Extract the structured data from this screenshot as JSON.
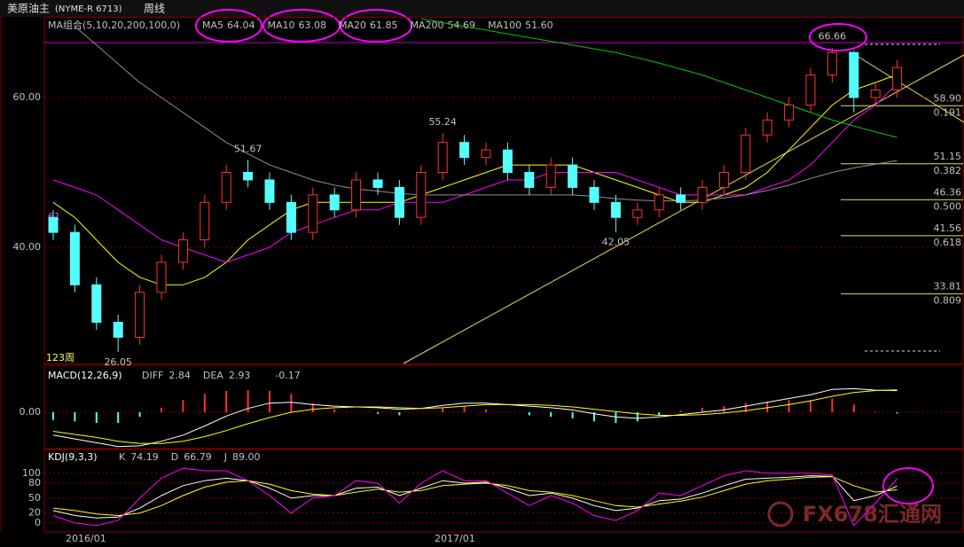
{
  "chart_data": {
    "type": "candlestick",
    "title": "美原油主",
    "symbol": "(NYME-R 6713)",
    "period": "周线",
    "ma_group": "MA组合(5,10,20,200,100,0)",
    "ma_legend": [
      {
        "name": "MA5",
        "value": 64.04,
        "color": "#ffffff"
      },
      {
        "name": "MA10",
        "value": 63.08,
        "color": "#ffff00"
      },
      {
        "name": "MA20",
        "value": 61.85,
        "color": "#ff00ff"
      },
      {
        "name": "MA200",
        "value": 54.69,
        "color": "#00ff00"
      },
      {
        "name": "MA100",
        "value": 51.6,
        "label": "51.60",
        "color": "#909090"
      }
    ],
    "open": [
      44,
      42,
      35,
      30,
      28,
      34,
      38,
      41,
      46,
      50,
      49,
      46,
      42,
      47,
      45,
      49,
      48,
      44,
      50,
      54,
      52,
      53,
      50,
      48,
      51,
      48,
      46,
      44,
      45,
      47,
      46,
      48,
      50,
      55,
      57,
      59,
      63,
      66,
      60,
      61
    ],
    "high": [
      45,
      43,
      36,
      31,
      35,
      39,
      42,
      47,
      51,
      51.67,
      50,
      47,
      48,
      48,
      50,
      50,
      49,
      51,
      55.24,
      55,
      54,
      54,
      51,
      52,
      52,
      49,
      47,
      46,
      48,
      48,
      49,
      51,
      56,
      58,
      60,
      64,
      66.66,
      66.3,
      62,
      65
    ],
    "low": [
      41,
      34,
      29,
      26.05,
      27,
      33,
      37,
      40,
      45,
      48,
      45,
      41,
      41,
      44,
      44,
      47,
      43,
      43,
      49,
      51,
      51,
      49,
      47,
      47,
      47,
      45,
      42.05,
      43,
      44,
      45,
      45,
      47,
      49,
      54,
      56,
      58,
      62,
      58,
      59,
      60
    ],
    "close": [
      42,
      35,
      30,
      28,
      34,
      38,
      41,
      46,
      50,
      49,
      46,
      42,
      47,
      45,
      49,
      48,
      44,
      50,
      54,
      52,
      53,
      50,
      48,
      51,
      48,
      46,
      44,
      45,
      47,
      46,
      48,
      50,
      55,
      57,
      59,
      63,
      66,
      60,
      61,
      64
    ],
    "up_color": "#ff3232",
    "down_color": "#54ffff",
    "ma_lines": [
      {
        "name": "MA10",
        "color": "#ffff00",
        "values": [
          46,
          44,
          41,
          38,
          36,
          35,
          35,
          36,
          38,
          41,
          43,
          45,
          46,
          46,
          46,
          46,
          46,
          47,
          48,
          49,
          50,
          51,
          51,
          51,
          51,
          50,
          49,
          48,
          47,
          46,
          46,
          47,
          48,
          50,
          53,
          56,
          59,
          61,
          62,
          63.08
        ]
      },
      {
        "name": "MA20",
        "color": "#ff00ff",
        "values": [
          49,
          48,
          47,
          45,
          43,
          41,
          40,
          39,
          38,
          39,
          40,
          42,
          43,
          44,
          45,
          45,
          46,
          46,
          46,
          47,
          48,
          49,
          49,
          50,
          50,
          50,
          50,
          49,
          48,
          47,
          47,
          47,
          47,
          48,
          49,
          51,
          54,
          57,
          59,
          61.85
        ]
      },
      {
        "name": "MA100",
        "color": "#909090",
        "values": [
          null,
          69.5,
          67,
          64.5,
          62,
          60,
          58,
          56,
          54,
          52.5,
          51,
          50,
          49,
          48.3,
          47.8,
          47.5,
          47.2,
          47,
          47,
          47,
          47,
          47,
          47,
          47,
          47,
          46.8,
          46.5,
          46.3,
          46.2,
          46.2,
          46.3,
          46.6,
          47,
          47.6,
          48.3,
          49.2,
          50,
          50.6,
          51.1,
          51.6
        ]
      },
      {
        "name": "MA200",
        "color": "#00c800",
        "values": [
          null,
          null,
          null,
          null,
          null,
          null,
          null,
          null,
          null,
          null,
          null,
          null,
          null,
          null,
          null,
          null,
          null,
          70.5,
          70,
          69.5,
          69,
          68.5,
          68,
          67.5,
          67,
          66.5,
          66,
          65.3,
          64.6,
          63.8,
          63,
          62,
          61,
          60,
          59,
          58,
          57,
          56.2,
          55.4,
          54.69
        ]
      }
    ],
    "ylim": [
      24.5,
      70.65
    ],
    "yticks": [
      {
        "value": 60,
        "label": "60.00"
      },
      {
        "value": 40,
        "label": "40.00"
      }
    ],
    "fibonacci": [
      {
        "price": {
          "value": 58.9,
          "label": "58.90"
        },
        "ratio": 0.191
      },
      {
        "price": 51.15,
        "ratio": 0.382
      },
      {
        "price": 46.36,
        "ratio": {
          "value": 0.5,
          "label": "0.500"
        }
      },
      {
        "price": 41.56,
        "ratio": 0.618
      },
      {
        "price": 33.81,
        "ratio": 0.809
      }
    ],
    "annotations": [
      "61",
      "123周"
    ],
    "x_labels": [
      "2016/01",
      "2017/01"
    ],
    "macd": {
      "title": "MACD(12,26,9)",
      "legend": [
        {
          "name": "DIFF",
          "value": 2.84,
          "color": "#ffffff"
        },
        {
          "name": "DEA",
          "value": 2.93,
          "color": "#ffff00"
        }
      ],
      "diff": [
        -3,
        -3.5,
        -4,
        -4.5,
        -4.4,
        -3.8,
        -3,
        -1.8,
        -0.5,
        0.5,
        1.2,
        1.3,
        1,
        0.8,
        0.7,
        0.6,
        0.4,
        0.5,
        0.9,
        1.2,
        1.2,
        1,
        0.8,
        0.6,
        0.3,
        -0.2,
        -0.6,
        -0.8,
        -0.6,
        -0.3,
        0,
        0.3,
        0.8,
        1.3,
        1.8,
        2.3,
        3,
        3.1,
        2.9,
        2.84
      ],
      "dea": [
        -2.5,
        -2.9,
        -3.3,
        -3.8,
        -4.1,
        -4.1,
        -3.8,
        -3.2,
        -2.4,
        -1.5,
        -0.7,
        0,
        0.4,
        0.6,
        0.7,
        0.7,
        0.6,
        0.5,
        0.6,
        0.8,
        1,
        1,
        1,
        0.9,
        0.7,
        0.4,
        0.1,
        -0.2,
        -0.4,
        -0.4,
        -0.3,
        -0.1,
        0.2,
        0.6,
        1,
        1.5,
        2.1,
        2.6,
        2.85,
        2.93
      ],
      "hist": [
        -1,
        -1.2,
        -1.4,
        -1.4,
        -0.6,
        0.6,
        1.6,
        2.4,
        2.8,
        2.9,
        2.8,
        2.4,
        1.2,
        0.4,
        0,
        -0.2,
        -0.4,
        0,
        0.6,
        0.8,
        0.4,
        0,
        -0.4,
        -0.6,
        -0.8,
        -1.2,
        -1.4,
        -1.2,
        -0.4,
        0.2,
        0.6,
        0.8,
        1.2,
        1.4,
        1.6,
        1.6,
        1.8,
        1,
        0.1,
        -0.17
      ],
      "ylim": [
        -4.65,
        6.05
      ],
      "yticks": [
        {
          "value": 0,
          "label": "0.00"
        }
      ]
    },
    "kdj": {
      "title": "KDJ(9,3,3)",
      "legend": [
        {
          "name": "K",
          "value": 74.19,
          "color": "#ffffff"
        },
        {
          "name": "D",
          "value": 66.79,
          "color": "#ffff00"
        },
        {
          "name": "J",
          "value": 89,
          "label": "89.00",
          "color": "#ff00ff"
        }
      ],
      "k": [
        25,
        15,
        10,
        12,
        30,
        55,
        75,
        85,
        90,
        85,
        70,
        50,
        55,
        55,
        70,
        72,
        55,
        70,
        85,
        80,
        82,
        70,
        55,
        60,
        50,
        35,
        25,
        30,
        45,
        48,
        60,
        75,
        88,
        90,
        92,
        95,
        94,
        45,
        55,
        74.19
      ],
      "d": [
        30,
        25,
        18,
        15,
        20,
        35,
        55,
        72,
        82,
        85,
        78,
        65,
        58,
        55,
        62,
        68,
        62,
        65,
        75,
        78,
        80,
        75,
        65,
        62,
        55,
        45,
        35,
        32,
        38,
        44,
        52,
        65,
        78,
        85,
        88,
        92,
        93,
        75,
        62,
        66.79
      ],
      "j": [
        15,
        0,
        -5,
        5,
        50,
        90,
        110,
        105,
        105,
        85,
        55,
        20,
        50,
        55,
        85,
        80,
        40,
        80,
        105,
        85,
        85,
        60,
        35,
        55,
        40,
        15,
        5,
        25,
        60,
        55,
        75,
        95,
        105,
        100,
        100,
        100,
        97,
        -5,
        40,
        89
      ],
      "ylim": [
        -18,
        146
      ],
      "yticks": [
        0,
        20,
        50,
        80,
        100
      ]
    },
    "watermark": "FX678汇通网"
  }
}
